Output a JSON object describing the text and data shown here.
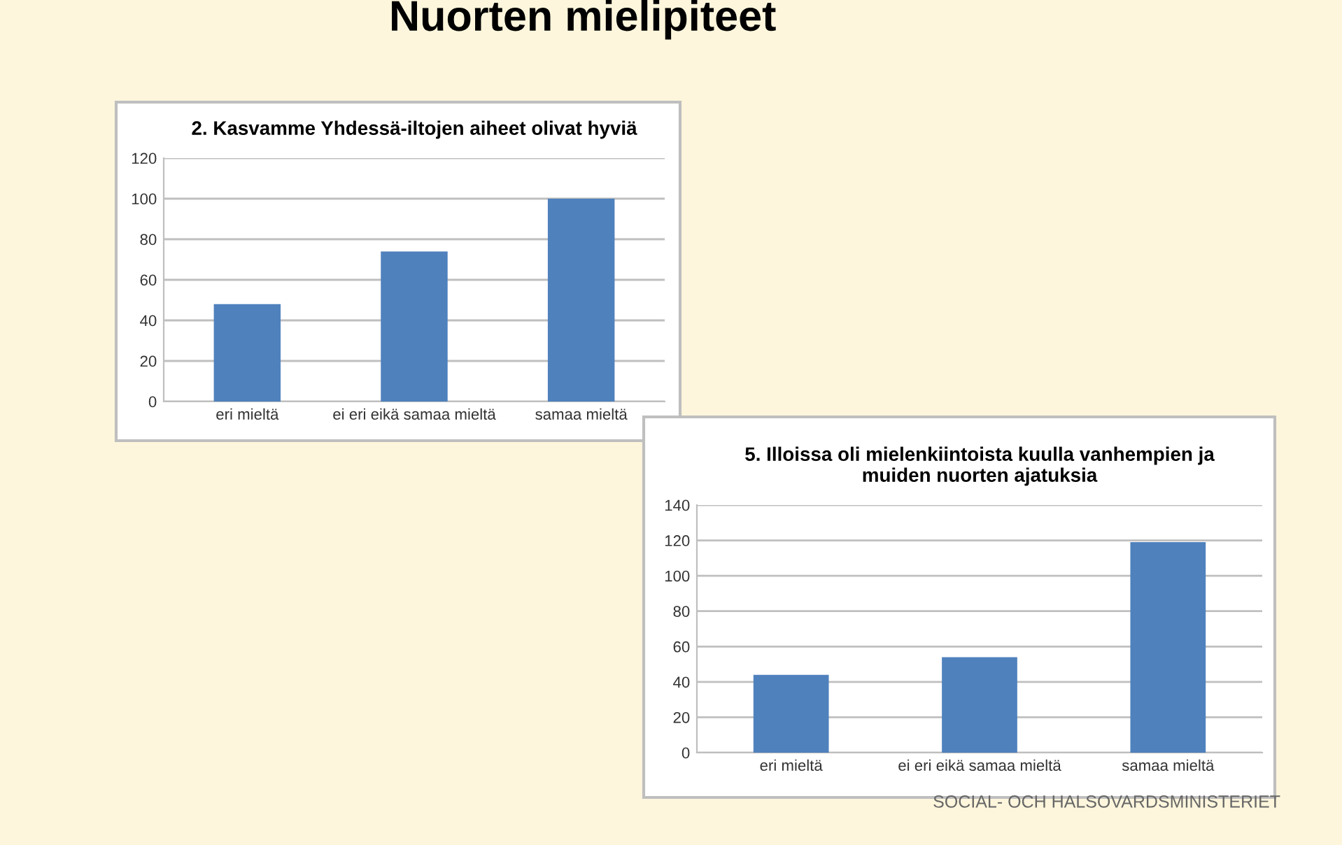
{
  "chart_data": [
    {
      "type": "bar",
      "title": "2. Kasvamme Yhdessä-iltojen aiheet olivat hyviä",
      "categories": [
        "eri mieltä",
        "ei eri eikä samaa mieltä",
        "samaa mieltä"
      ],
      "values": [
        48,
        74,
        100
      ],
      "color": "#4f81bd",
      "ylim": [
        0,
        120
      ],
      "yticks": [
        0,
        20,
        40,
        60,
        80,
        100,
        120
      ],
      "grid": "y",
      "legend": false,
      "annotations": [
        "Nuorten mielipiteet"
      ]
    },
    {
      "type": "bar",
      "title": "5. Illoissa oli mielenkiintoista kuulla vanhempien ja\nmuiden nuorten ajatuksia",
      "categories": [
        "eri mieltä",
        "ei eri eikä samaa mieltä",
        "samaa mieltä"
      ],
      "values": [
        44,
        54,
        119
      ],
      "color": "#4f81bd",
      "ylim": [
        0,
        140
      ],
      "yticks": [
        0,
        20,
        40,
        60,
        80,
        100,
        120,
        140
      ],
      "grid": "y",
      "legend": false,
      "annotations": [
        "SOCIAL- OCH HALSOVARDSMINISTERIET"
      ]
    }
  ]
}
